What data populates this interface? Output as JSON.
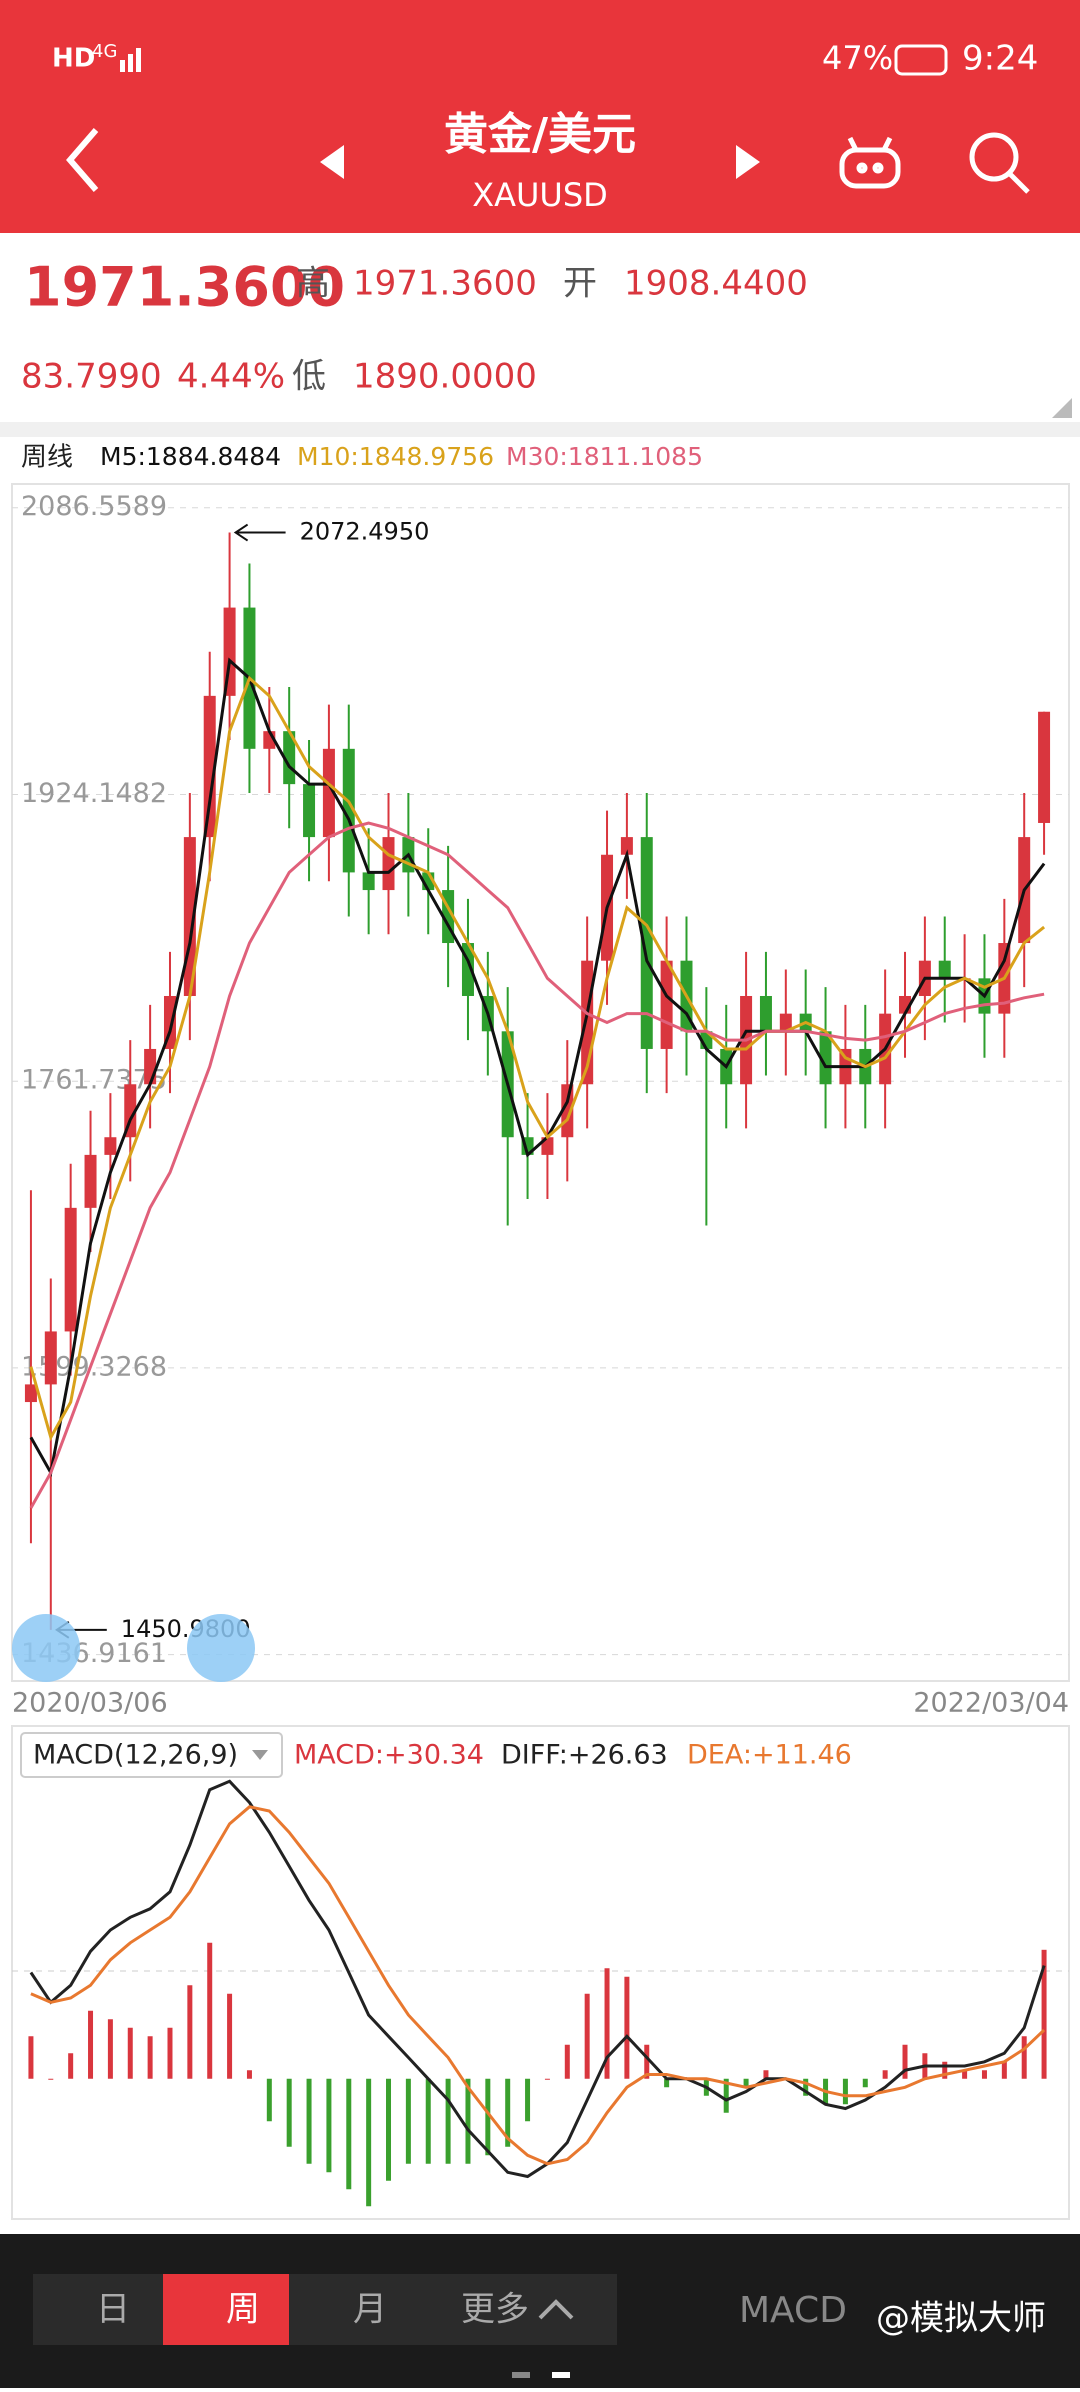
{
  "status_bar": {
    "hd": "HD",
    "network": "4G",
    "battery": "47%",
    "time": "9:24"
  },
  "header": {
    "title": "黄金/美元",
    "subtitle": "XAUUSD"
  },
  "quote": {
    "last": "1971.3600",
    "high_label": "高",
    "high": "1971.3600",
    "open_label": "开",
    "open": "1908.4400",
    "change": "83.7990",
    "change_pct": "4.44%",
    "low_label": "低",
    "low": "1890.0000"
  },
  "chart_data": [
    {
      "type": "candlestick",
      "title": "周线",
      "x_labels": [
        "2020/03/06",
        "2022/03/04"
      ],
      "open": [
        1580,
        1590,
        1620,
        1690,
        1720,
        1730,
        1760,
        1780,
        1810,
        1900,
        1980,
        2030,
        1950,
        1960,
        1930,
        1900,
        1950,
        1880,
        1870,
        1900,
        1880,
        1870,
        1840,
        1810,
        1790,
        1730,
        1720,
        1730,
        1760,
        1830,
        1890,
        1900,
        1780,
        1830,
        1790,
        1780,
        1760,
        1810,
        1790,
        1800,
        1790,
        1760,
        1780,
        1760,
        1800,
        1810,
        1830,
        1820,
        1820,
        1800,
        1840,
        1908
      ],
      "high": [
        1700,
        1650,
        1715,
        1745,
        1755,
        1785,
        1805,
        1835,
        1925,
        2005,
        2072.495,
        2055,
        1985,
        1985,
        1955,
        1975,
        1975,
        1905,
        1925,
        1925,
        1905,
        1895,
        1865,
        1835,
        1815,
        1755,
        1755,
        1785,
        1855,
        1915,
        1925,
        1925,
        1855,
        1855,
        1815,
        1805,
        1835,
        1835,
        1825,
        1825,
        1815,
        1805,
        1805,
        1825,
        1835,
        1855,
        1855,
        1845,
        1845,
        1865,
        1925,
        1971
      ],
      "low": [
        1500,
        1450.98,
        1595,
        1665,
        1695,
        1705,
        1735,
        1755,
        1785,
        1875,
        1955,
        1925,
        1925,
        1905,
        1875,
        1875,
        1855,
        1845,
        1845,
        1855,
        1845,
        1815,
        1785,
        1765,
        1680,
        1695,
        1695,
        1705,
        1735,
        1805,
        1865,
        1755,
        1755,
        1765,
        1680,
        1735,
        1735,
        1765,
        1765,
        1765,
        1735,
        1735,
        1735,
        1735,
        1775,
        1785,
        1795,
        1795,
        1775,
        1775,
        1815,
        1890
      ],
      "close": [
        1590,
        1620,
        1690,
        1720,
        1730,
        1760,
        1780,
        1810,
        1900,
        1980,
        2030,
        1950,
        1960,
        1930,
        1900,
        1950,
        1880,
        1870,
        1900,
        1880,
        1870,
        1840,
        1810,
        1790,
        1730,
        1720,
        1730,
        1760,
        1830,
        1890,
        1900,
        1780,
        1830,
        1790,
        1780,
        1760,
        1810,
        1790,
        1800,
        1790,
        1760,
        1780,
        1760,
        1800,
        1810,
        1830,
        1820,
        1820,
        1800,
        1840,
        1900,
        1971
      ],
      "up_color": "#d9363e",
      "down_color": "#2e9e2e",
      "series": [
        {
          "name": "M5:1884.8484",
          "color": "#111111",
          "values": [
            1560,
            1540,
            1600,
            1670,
            1710,
            1740,
            1760,
            1790,
            1840,
            1920,
            2000,
            1990,
            1960,
            1940,
            1930,
            1930,
            1910,
            1880,
            1880,
            1890,
            1870,
            1850,
            1830,
            1800,
            1760,
            1720,
            1730,
            1750,
            1800,
            1860,
            1890,
            1830,
            1810,
            1800,
            1780,
            1770,
            1790,
            1790,
            1790,
            1790,
            1770,
            1770,
            1770,
            1780,
            1800,
            1820,
            1820,
            1820,
            1810,
            1830,
            1870,
            1885
          ]
        },
        {
          "name": "M10:1848.9756",
          "color": "#d9a21b",
          "values": [
            1600,
            1560,
            1580,
            1640,
            1690,
            1720,
            1750,
            1770,
            1810,
            1880,
            1960,
            1990,
            1980,
            1960,
            1940,
            1930,
            1920,
            1900,
            1890,
            1885,
            1880,
            1860,
            1840,
            1820,
            1790,
            1750,
            1730,
            1740,
            1770,
            1820,
            1860,
            1850,
            1830,
            1810,
            1790,
            1780,
            1780,
            1790,
            1790,
            1795,
            1790,
            1775,
            1770,
            1775,
            1790,
            1805,
            1815,
            1820,
            1815,
            1820,
            1840,
            1849
          ]
        },
        {
          "name": "M30:1811.1085",
          "color": "#e0607a",
          "values": [
            1520,
            1540,
            1570,
            1600,
            1630,
            1660,
            1690,
            1710,
            1740,
            1770,
            1810,
            1840,
            1860,
            1880,
            1890,
            1900,
            1905,
            1908,
            1905,
            1900,
            1895,
            1890,
            1880,
            1870,
            1860,
            1840,
            1820,
            1810,
            1800,
            1795,
            1800,
            1800,
            1795,
            1790,
            1790,
            1785,
            1785,
            1790,
            1790,
            1790,
            1788,
            1786,
            1785,
            1787,
            1790,
            1795,
            1800,
            1803,
            1805,
            1806,
            1809,
            1811
          ]
        }
      ],
      "ylim": [
        1422,
        2100
      ],
      "yticks": [
        1436.9161,
        1599.3268,
        1761.7375,
        1924.1482,
        2086.5589
      ],
      "grid": true,
      "annotations": [
        {
          "value": 2072.495,
          "label": "2072.4950"
        },
        {
          "value": 1450.98,
          "label": "1450.9800"
        }
      ]
    },
    {
      "type": "macd",
      "title": "MACD(12,26,9)",
      "up_color": "#d9363e",
      "down_color": "#3aa02d",
      "series": [
        {
          "name": "MACD:+30.34",
          "color": "#d9363e",
          "kind": "bar",
          "values": [
            10,
            0,
            6,
            16,
            14,
            12,
            10,
            12,
            22,
            32,
            20,
            2,
            -10,
            -16,
            -20,
            -22,
            -26,
            -30,
            -24,
            -20,
            -20,
            -20,
            -20,
            -18,
            -16,
            -10,
            0,
            8,
            20,
            26,
            24,
            8,
            -2,
            0,
            -4,
            -8,
            -2,
            2,
            0,
            -4,
            -6,
            -6,
            -2,
            2,
            8,
            6,
            4,
            2,
            2,
            4,
            10,
            30.34
          ]
        },
        {
          "name": "DIFF:+26.63",
          "color": "#222222",
          "kind": "line",
          "values": [
            25,
            18,
            22,
            30,
            35,
            38,
            40,
            44,
            55,
            68,
            70,
            65,
            58,
            50,
            42,
            35,
            25,
            15,
            10,
            5,
            0,
            -5,
            -12,
            -17,
            -22,
            -23,
            -20,
            -15,
            -5,
            5,
            10,
            5,
            0,
            0,
            -2,
            -5,
            -3,
            0,
            0,
            -3,
            -6,
            -7,
            -5,
            -2,
            2,
            3,
            3,
            3,
            4,
            6,
            12,
            26.63
          ]
        },
        {
          "name": "DEA:+11.46",
          "color": "#e8782f",
          "kind": "line",
          "values": [
            20,
            18,
            19,
            22,
            28,
            32,
            35,
            38,
            44,
            52,
            60,
            64,
            63,
            58,
            52,
            46,
            38,
            30,
            22,
            15,
            10,
            5,
            -2,
            -8,
            -14,
            -18,
            -20,
            -19,
            -15,
            -8,
            -2,
            1,
            1,
            0,
            0,
            -1,
            -2,
            -1,
            0,
            -1,
            -3,
            -4,
            -4,
            -3,
            -2,
            0,
            1,
            2,
            3,
            4,
            7,
            11.46
          ]
        }
      ],
      "ylim": [
        -33,
        83
      ]
    }
  ],
  "bottom_nav": {
    "tabs": [
      "日",
      "周",
      "月",
      "更多"
    ],
    "active": 1,
    "indicator": "MACD"
  },
  "watermark": "@模拟大师"
}
